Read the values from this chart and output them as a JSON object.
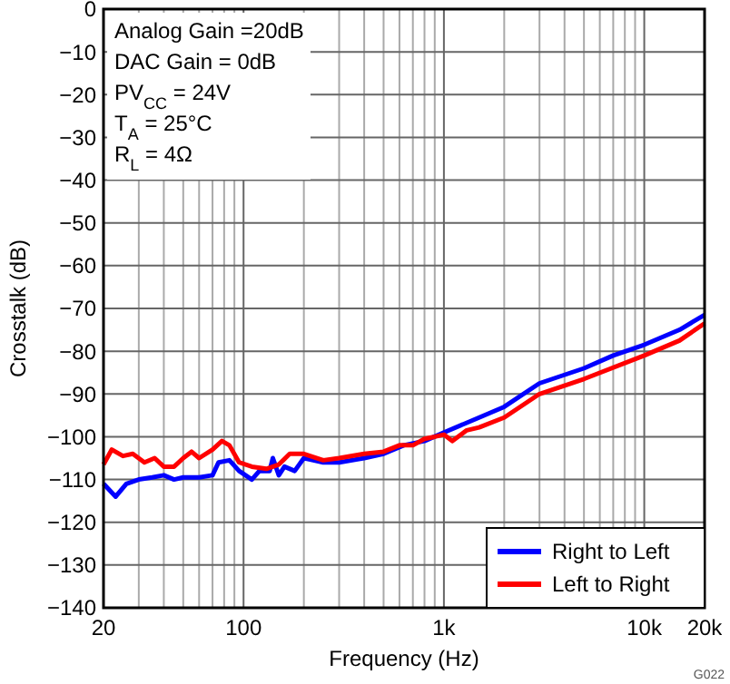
{
  "chart_data": {
    "type": "line",
    "xlabel": "Frequency (Hz)",
    "ylabel": "Crosstalk (dB)",
    "log": "x",
    "xlim": [
      20,
      20000
    ],
    "ylim": [
      -140,
      0
    ],
    "xticks": [
      {
        "value": 20,
        "label": "20"
      },
      {
        "value": 30,
        "label": null
      },
      {
        "value": 40,
        "label": null
      },
      {
        "value": 50,
        "label": null
      },
      {
        "value": 60,
        "label": null
      },
      {
        "value": 70,
        "label": null
      },
      {
        "value": 80,
        "label": null
      },
      {
        "value": 90,
        "label": null
      },
      {
        "value": 100,
        "label": "100"
      },
      {
        "value": 200,
        "label": null
      },
      {
        "value": 300,
        "label": null
      },
      {
        "value": 400,
        "label": null
      },
      {
        "value": 500,
        "label": null
      },
      {
        "value": 600,
        "label": null
      },
      {
        "value": 700,
        "label": null
      },
      {
        "value": 800,
        "label": null
      },
      {
        "value": 900,
        "label": null
      },
      {
        "value": 1000,
        "label": "1k"
      },
      {
        "value": 2000,
        "label": null
      },
      {
        "value": 3000,
        "label": null
      },
      {
        "value": 4000,
        "label": null
      },
      {
        "value": 5000,
        "label": null
      },
      {
        "value": 6000,
        "label": null
      },
      {
        "value": 7000,
        "label": null
      },
      {
        "value": 8000,
        "label": null
      },
      {
        "value": 9000,
        "label": null
      },
      {
        "value": 10000,
        "label": "10k"
      },
      {
        "value": 20000,
        "label": "20k"
      }
    ],
    "yticks": [
      -140,
      -130,
      -120,
      -110,
      -100,
      -90,
      -80,
      -70,
      -60,
      -50,
      -40,
      -30,
      -20,
      -10,
      0
    ],
    "grid": true,
    "legend": "bottom right",
    "line_style": "solid",
    "marker": "none",
    "series": [
      {
        "name": "Right to Left",
        "color": "#0000ff",
        "x": [
          20,
          23,
          26,
          30,
          35,
          40,
          45,
          50,
          60,
          70,
          75,
          85,
          95,
          110,
          120,
          135,
          140,
          150,
          160,
          180,
          200,
          250,
          300,
          400,
          500,
          630,
          800,
          1000,
          1500,
          2000,
          3000,
          5000,
          7000,
          10000,
          15000,
          20000
        ],
        "values": [
          -111,
          -114,
          -111,
          -110,
          -109.5,
          -109,
          -110,
          -109.5,
          -109.5,
          -109,
          -106,
          -105.5,
          -108,
          -110,
          -108,
          -108,
          -105,
          -109,
          -107,
          -108,
          -105,
          -106,
          -106,
          -105,
          -104,
          -102,
          -101,
          -99,
          -95.5,
          -93,
          -87.5,
          -84,
          -81,
          -78.5,
          -75,
          -71.5
        ]
      },
      {
        "name": "Left to Right",
        "color": "#ff0000",
        "x": [
          20,
          22,
          25,
          28,
          32,
          36,
          40,
          45,
          50,
          55,
          60,
          70,
          78,
          85,
          95,
          110,
          130,
          150,
          170,
          200,
          250,
          300,
          400,
          500,
          600,
          700,
          800,
          900,
          1000,
          1100,
          1300,
          1500,
          2000,
          3000,
          5000,
          10000,
          15000,
          20000
        ],
        "values": [
          -106.5,
          -103,
          -104.5,
          -104,
          -106,
          -105,
          -107,
          -107,
          -105,
          -103.5,
          -105,
          -103,
          -101,
          -102,
          -106,
          -107,
          -107.5,
          -106.5,
          -104,
          -104,
          -105.5,
          -105,
          -104,
          -103.5,
          -102,
          -102,
          -100.5,
          -100,
          -99.5,
          -101,
          -98.5,
          -97.8,
          -95.5,
          -90,
          -86.5,
          -81,
          -77.5,
          -73.5
        ]
      }
    ],
    "annotations": [
      "Analog Gain =20dB",
      "DAC Gain = 0dB",
      "PV$_{CC}$ = 24V",
      "T$_{A}$ = 25°C",
      "R$_{L}$ = 4Ω",
      "G022"
    ]
  }
}
